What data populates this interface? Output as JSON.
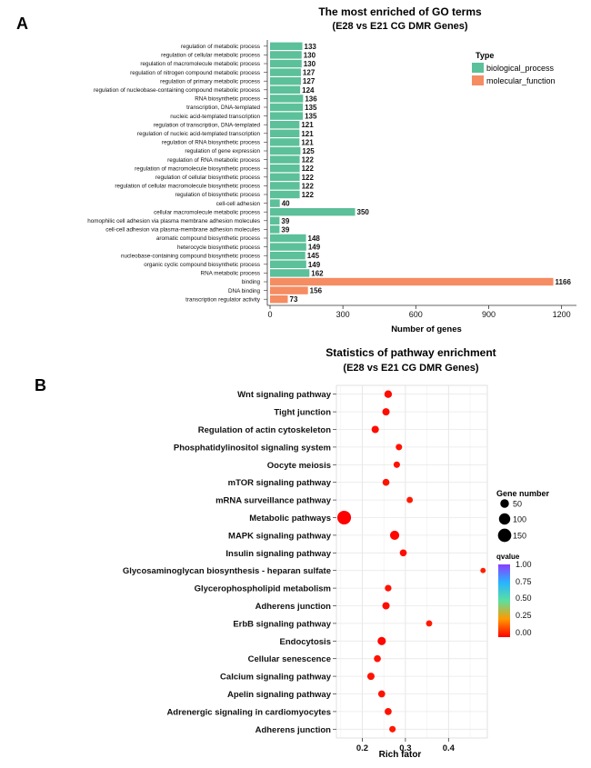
{
  "panels": {
    "a_letter": "A",
    "b_letter": "B"
  },
  "chart_data": [
    {
      "type": "bar",
      "orientation": "horizontal",
      "title": "The most enriched of GO terms",
      "subtitle": "(E28 vs E21 CG DMR Genes)",
      "xlabel": "Number of genes",
      "ylabel": "",
      "xlim": [
        0,
        1250
      ],
      "xticks": [
        0,
        300,
        600,
        900,
        1200
      ],
      "legend": {
        "title": "Type",
        "placement": "top-right",
        "entries": [
          {
            "label": "biological_process",
            "color": "#5cc09a"
          },
          {
            "label": "molecular_function",
            "color": "#f58c62"
          }
        ]
      },
      "categories": [
        "regulation of metabolic process",
        "regulation of cellular metabolic process",
        "regulation of macromolecule metabolic process",
        "regulation of nitrogen compound metabolic process",
        "regulation of primary metabolic process",
        "regulation of nucleobase-containing compound metabolic process",
        "RNA biosynthetic process",
        "transcription, DNA-templated",
        "nucleic acid-templated transcription",
        "regulation of transcription, DNA-templated",
        "regulation of nucleic acid-templated transcription",
        "regulation of RNA biosynthetic process",
        "regulation of gene expression",
        "regulation of RNA metabolic process",
        "regulation of macromolecule biosynthetic process",
        "regulation of cellular biosynthetic process",
        "regulation of cellular macromolecule biosynthetic process",
        "regulation of biosynthetic process",
        "cell-cell adhesion",
        "cellular macromolecule metabolic process",
        "homophilic cell adhesion via plasma membrane adhesion molecules",
        "cell-cell adhesion via plasma-membrane adhesion molecules",
        "aromatic compound biosynthetic process",
        "heterocycle biosynthetic process",
        "nucleobase-containing compound biosynthetic process",
        "organic cyclic compound biosynthetic process",
        "RNA metabolic process",
        "binding",
        "DNA binding",
        "transcription regulator activity"
      ],
      "values": [
        133,
        130,
        130,
        127,
        127,
        124,
        136,
        135,
        135,
        121,
        121,
        121,
        125,
        122,
        122,
        122,
        122,
        122,
        40,
        350,
        39,
        39,
        148,
        149,
        145,
        149,
        162,
        1166,
        156,
        73
      ],
      "types": [
        "biological_process",
        "biological_process",
        "biological_process",
        "biological_process",
        "biological_process",
        "biological_process",
        "biological_process",
        "biological_process",
        "biological_process",
        "biological_process",
        "biological_process",
        "biological_process",
        "biological_process",
        "biological_process",
        "biological_process",
        "biological_process",
        "biological_process",
        "biological_process",
        "biological_process",
        "biological_process",
        "biological_process",
        "biological_process",
        "biological_process",
        "biological_process",
        "biological_process",
        "biological_process",
        "biological_process",
        "molecular_function",
        "molecular_function",
        "molecular_function"
      ]
    },
    {
      "type": "scatter",
      "title": "Statistics of pathway enrichment",
      "subtitle": "(E28 vs E21 CG DMR Genes)",
      "xlabel": "Rich fator",
      "ylabel": "",
      "xlim": [
        0.14,
        0.49
      ],
      "xticks": [
        0.2,
        0.3,
        0.4
      ],
      "grid": true,
      "size_legend": {
        "title": "Gene number",
        "placement": "right",
        "values": [
          50,
          100,
          150
        ]
      },
      "color_legend": {
        "title": "qvalue",
        "placement": "right",
        "ticks": [
          "1.00",
          "0.75",
          "0.50",
          "0.25",
          "0.00"
        ],
        "low_color": "#ff0000",
        "high_color": "#8b3dff"
      },
      "pathways": [
        {
          "name": "Wnt signaling pathway",
          "rich_factor": 0.26,
          "gene_number": 35,
          "qvalue": 0.02
        },
        {
          "name": "Tight junction",
          "rich_factor": 0.255,
          "gene_number": 32,
          "qvalue": 0.02
        },
        {
          "name": "Regulation of actin cytoskeleton",
          "rich_factor": 0.23,
          "gene_number": 32,
          "qvalue": 0.02
        },
        {
          "name": "Phosphatidylinositol signaling system",
          "rich_factor": 0.285,
          "gene_number": 22,
          "qvalue": 0.03
        },
        {
          "name": "Oocyte meiosis",
          "rich_factor": 0.28,
          "gene_number": 22,
          "qvalue": 0.03
        },
        {
          "name": "mTOR signaling pathway",
          "rich_factor": 0.255,
          "gene_number": 28,
          "qvalue": 0.03
        },
        {
          "name": "mRNA surveillance pathway",
          "rich_factor": 0.31,
          "gene_number": 20,
          "qvalue": 0.04
        },
        {
          "name": "Metabolic pathways",
          "rich_factor": 0.158,
          "gene_number": 160,
          "qvalue": 0.0
        },
        {
          "name": "MAPK signaling pathway",
          "rich_factor": 0.275,
          "gene_number": 60,
          "qvalue": 0.01
        },
        {
          "name": "Insulin signaling pathway",
          "rich_factor": 0.295,
          "gene_number": 28,
          "qvalue": 0.02
        },
        {
          "name": "Glycosaminoglycan biosynthesis - heparan sulfate",
          "rich_factor": 0.48,
          "gene_number": 12,
          "qvalue": 0.05
        },
        {
          "name": "Glycerophospholipid metabolism",
          "rich_factor": 0.26,
          "gene_number": 24,
          "qvalue": 0.03
        },
        {
          "name": "Adherens junction",
          "rich_factor": 0.255,
          "gene_number": 32,
          "qvalue": 0.02
        },
        {
          "name": "ErbB signaling pathway",
          "rich_factor": 0.355,
          "gene_number": 20,
          "qvalue": 0.04
        },
        {
          "name": "Endocytosis",
          "rich_factor": 0.245,
          "gene_number": 45,
          "qvalue": 0.01
        },
        {
          "name": "Cellular senescence",
          "rich_factor": 0.235,
          "gene_number": 28,
          "qvalue": 0.03
        },
        {
          "name": "Calcium signaling pathway",
          "rich_factor": 0.22,
          "gene_number": 32,
          "qvalue": 0.03
        },
        {
          "name": "Apelin signaling pathway",
          "rich_factor": 0.245,
          "gene_number": 28,
          "qvalue": 0.03
        },
        {
          "name": "Adrenergic signaling in cardiomyocytes",
          "rich_factor": 0.26,
          "gene_number": 28,
          "qvalue": 0.03
        },
        {
          "name": "Adherens junction",
          "rich_factor": 0.27,
          "gene_number": 22,
          "qvalue": 0.04
        }
      ]
    }
  ]
}
